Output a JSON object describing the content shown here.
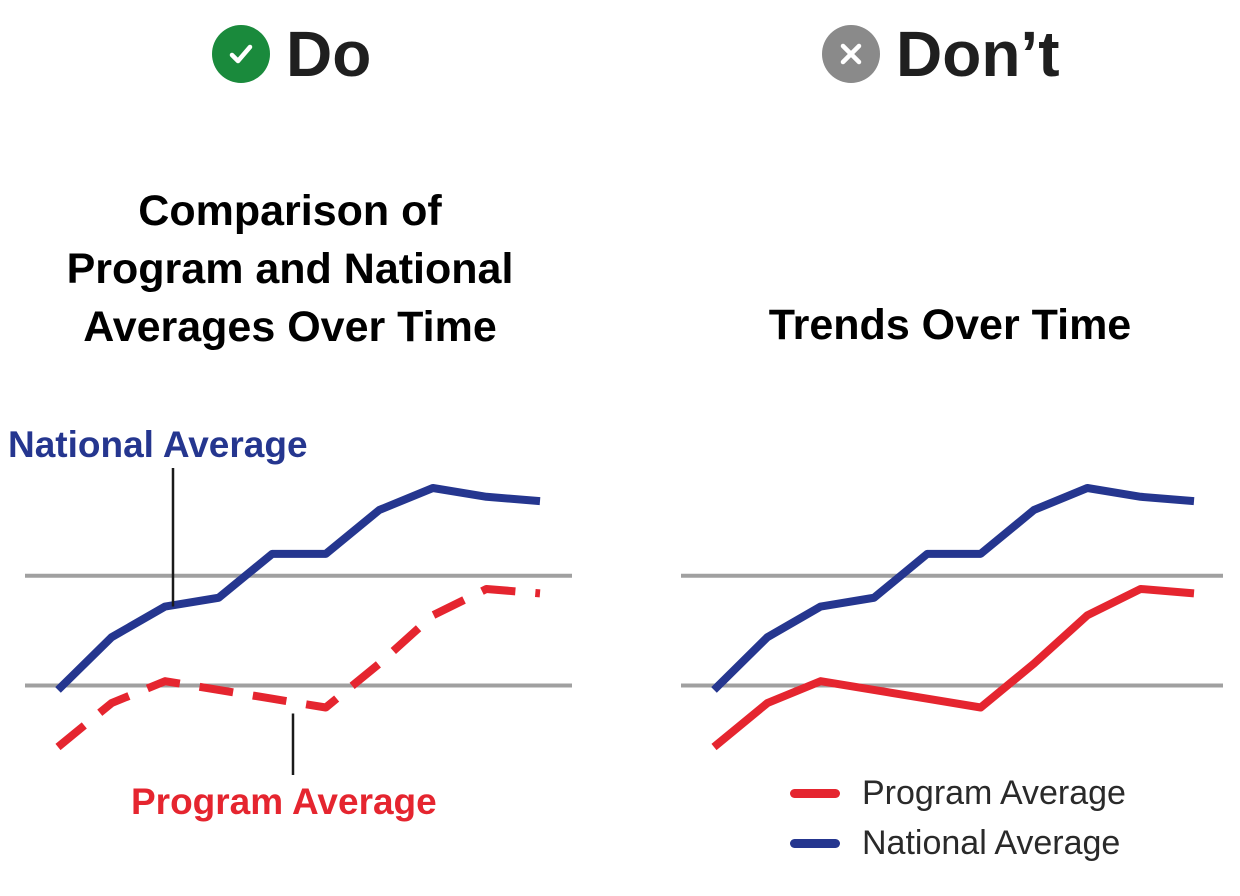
{
  "headers": {
    "do": {
      "label": "Do",
      "icon": "check-circle-icon",
      "icon_color": "#1a8a3c"
    },
    "dont": {
      "label": "Don’t",
      "icon": "x-circle-icon",
      "icon_color": "#8a8a8a"
    }
  },
  "colors": {
    "national": "#25368f",
    "program": "#e5252f",
    "gridline": "#a0a0a0",
    "leader": "#1a1a1a"
  },
  "chart_data": [
    {
      "type": "line",
      "title": "Comparison of\nProgram and National\nAverages Over Time",
      "xlabel": "",
      "ylabel": "",
      "x": [
        0,
        1,
        2,
        3,
        4,
        5,
        6,
        7,
        8,
        9
      ],
      "ylim": [
        0,
        100
      ],
      "grid_values": [
        45,
        70
      ],
      "legend": "direct labels",
      "series": [
        {
          "name": "National Average",
          "style": "solid",
          "values": [
            44,
            56,
            63,
            65,
            75,
            75,
            85,
            90,
            88,
            87
          ]
        },
        {
          "name": "Program Average",
          "style": "dashed",
          "values": [
            31,
            41,
            46,
            44,
            42,
            40,
            50,
            61,
            67,
            66
          ]
        }
      ],
      "labels": {
        "national": "National Average",
        "program": "Program Average"
      }
    },
    {
      "type": "line",
      "title": "Trends Over Time",
      "xlabel": "",
      "ylabel": "",
      "x": [
        0,
        1,
        2,
        3,
        4,
        5,
        6,
        7,
        8,
        9
      ],
      "ylim": [
        0,
        100
      ],
      "grid_values": [
        45,
        70
      ],
      "legend": "bottom-right",
      "series": [
        {
          "name": "National Average",
          "style": "solid",
          "values": [
            44,
            56,
            63,
            65,
            75,
            75,
            85,
            90,
            88,
            87
          ]
        },
        {
          "name": "Program Average",
          "style": "solid",
          "values": [
            31,
            41,
            46,
            44,
            42,
            40,
            50,
            61,
            67,
            66
          ]
        }
      ],
      "legend_items": [
        "Program Average",
        "National Average"
      ]
    }
  ]
}
